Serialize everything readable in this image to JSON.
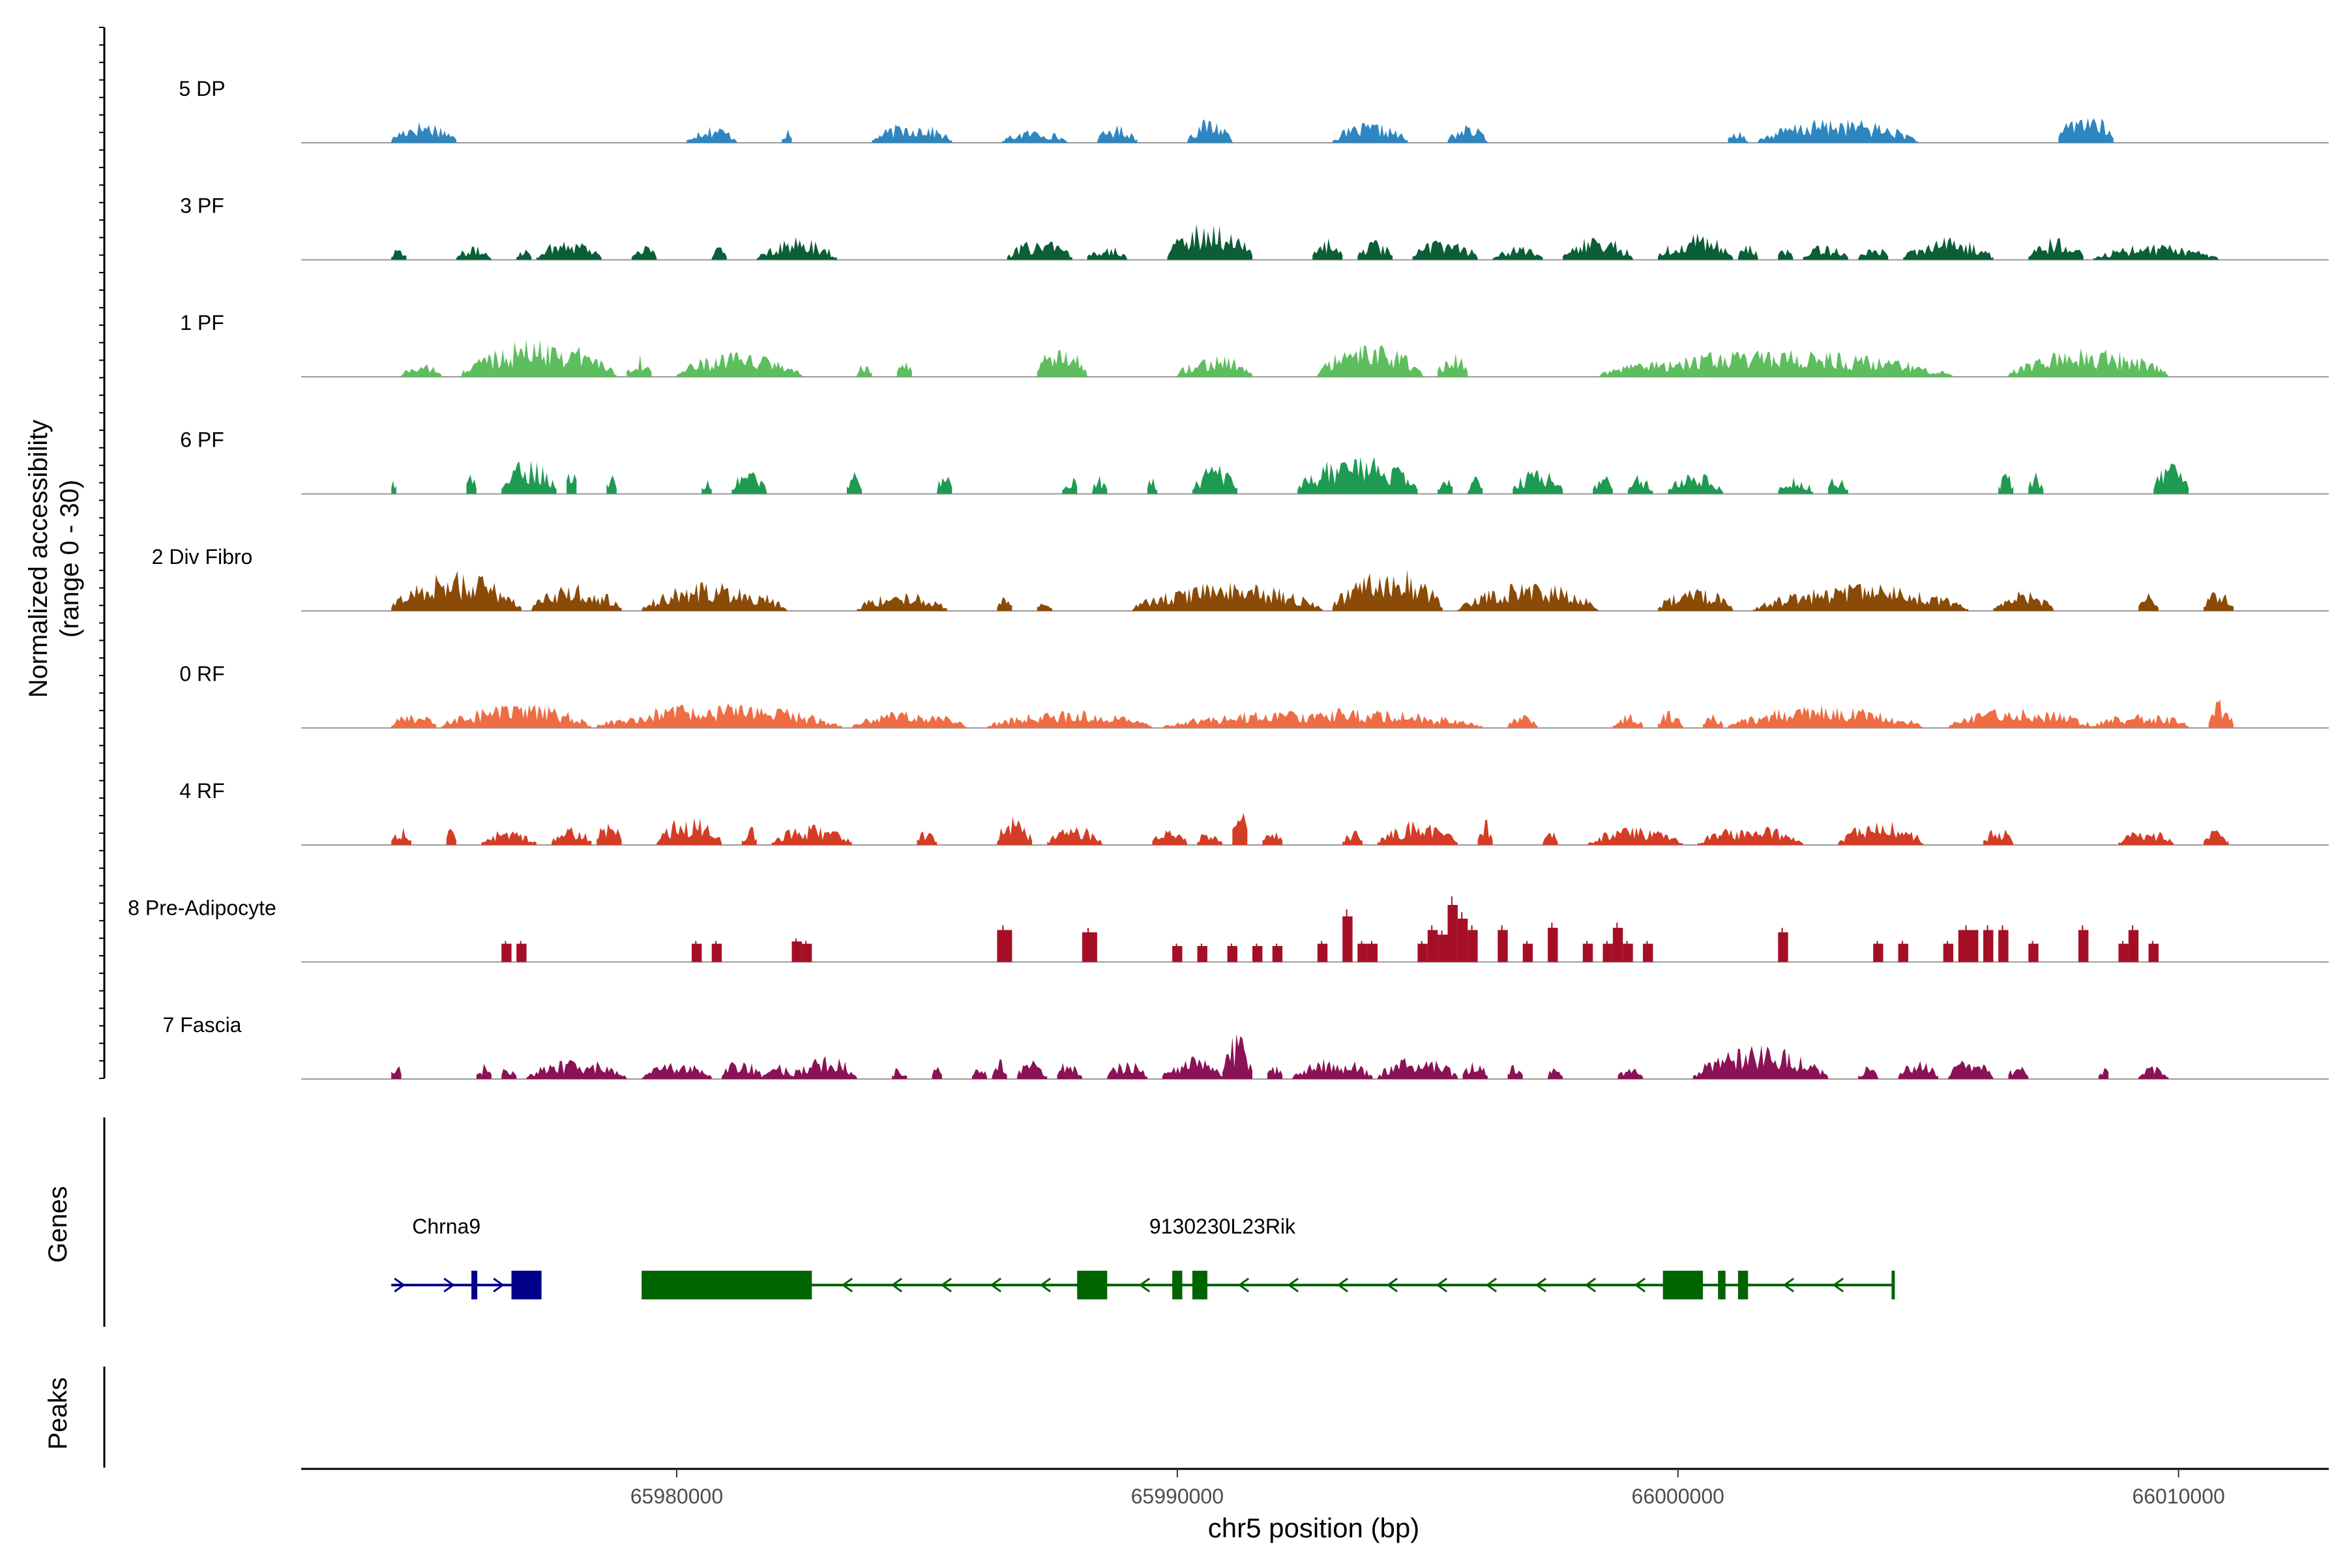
{
  "chart_data": {
    "type": "area",
    "title": "",
    "xlabel": "chr5 position (bp)",
    "ylabel_line1": "Normalized accessibility",
    "ylabel_line2": "(range 0 - 30)",
    "y_range": [
      0,
      30
    ],
    "xlim": [
      65972500,
      66013000
    ],
    "x_ticks": [
      65980000,
      65990000,
      66000000,
      66010000
    ],
    "x_tick_labels": [
      "65980000",
      "65990000",
      "66000000",
      "66010000"
    ],
    "genes_panel_label": "Genes",
    "peaks_panel_label": "Peaks",
    "tracks": [
      {
        "name": "5 DP",
        "color": "#2E86C1",
        "style": "area",
        "regions": [
          [
            65974300,
            65975600,
            0.5
          ],
          [
            65980200,
            65981200,
            0.4
          ],
          [
            65982100,
            65982300,
            0.3
          ],
          [
            65983900,
            65985500,
            0.45
          ],
          [
            65986500,
            65987800,
            0.3
          ],
          [
            65988400,
            65989200,
            0.4
          ],
          [
            65990200,
            65991100,
            0.55
          ],
          [
            65993100,
            65994600,
            0.45
          ],
          [
            65995400,
            65996200,
            0.4
          ],
          [
            66001000,
            66001400,
            0.3
          ],
          [
            66001600,
            66004800,
            0.55
          ],
          [
            66007600,
            66008700,
            0.7
          ]
        ]
      },
      {
        "name": "3 PF",
        "color": "#0B5E36",
        "style": "area",
        "regions": [
          [
            65974300,
            65974600,
            0.35
          ],
          [
            65975600,
            65976300,
            0.3
          ],
          [
            65976800,
            65977100,
            0.3
          ],
          [
            65977200,
            65978500,
            0.5
          ],
          [
            65979100,
            65979600,
            0.35
          ],
          [
            65980700,
            65981000,
            0.3
          ],
          [
            65981600,
            65983200,
            0.5
          ],
          [
            65986600,
            65987900,
            0.45
          ],
          [
            65988200,
            65989000,
            0.35
          ],
          [
            65989800,
            65991500,
            0.85
          ],
          [
            65992700,
            65993300,
            0.5
          ],
          [
            65993600,
            65994300,
            0.45
          ],
          [
            65994700,
            65996000,
            0.5
          ],
          [
            65996300,
            65997300,
            0.3
          ],
          [
            65997700,
            65999100,
            0.55
          ],
          [
            65999600,
            66001100,
            0.6
          ],
          [
            66001200,
            66001600,
            0.35
          ],
          [
            66002000,
            66002300,
            0.3
          ],
          [
            66002500,
            66003400,
            0.35
          ],
          [
            66003600,
            66004200,
            0.35
          ],
          [
            66004500,
            66006300,
            0.5
          ],
          [
            66007000,
            66008100,
            0.5
          ],
          [
            66008300,
            66010800,
            0.35
          ]
        ]
      },
      {
        "name": "1 PF",
        "color": "#5DBE5F",
        "style": "area",
        "regions": [
          [
            65974500,
            65975300,
            0.3
          ],
          [
            65975700,
            65978800,
            0.85
          ],
          [
            65979000,
            65979500,
            0.5
          ],
          [
            65980000,
            65982500,
            0.55
          ],
          [
            65983600,
            65983900,
            0.3
          ],
          [
            65984400,
            65984700,
            0.35
          ],
          [
            65987200,
            65988200,
            0.75
          ],
          [
            65990000,
            65991500,
            0.5
          ],
          [
            65992800,
            65994900,
            0.75
          ],
          [
            65995200,
            65995800,
            0.55
          ],
          [
            65998400,
            66005500,
            0.6
          ],
          [
            66006600,
            66009800,
            0.65
          ]
        ]
      },
      {
        "name": "6 PF",
        "color": "#1E9A52",
        "style": "area",
        "regions": [
          [
            65974300,
            65974400,
            0.4
          ],
          [
            65975800,
            65976000,
            0.5
          ],
          [
            65976500,
            65977600,
            0.8
          ],
          [
            65977800,
            65978000,
            0.7
          ],
          [
            65978600,
            65978800,
            0.5
          ],
          [
            65980500,
            65980700,
            0.4
          ],
          [
            65981100,
            65981800,
            0.55
          ],
          [
            65983400,
            65983700,
            0.6
          ],
          [
            65985200,
            65985500,
            0.45
          ],
          [
            65987700,
            65988000,
            0.45
          ],
          [
            65988300,
            65988600,
            0.4
          ],
          [
            65989400,
            65989600,
            0.4
          ],
          [
            65990300,
            65991200,
            0.65
          ],
          [
            65992400,
            65994800,
            0.9
          ],
          [
            65995200,
            65995500,
            0.5
          ],
          [
            65995800,
            65996100,
            0.45
          ],
          [
            65996700,
            65997700,
            0.6
          ],
          [
            65998300,
            65998700,
            0.45
          ],
          [
            65999000,
            65999500,
            0.45
          ],
          [
            65999800,
            66000900,
            0.55
          ],
          [
            66002000,
            66002700,
            0.4
          ],
          [
            66003000,
            66003400,
            0.45
          ],
          [
            66006400,
            66006700,
            0.5
          ],
          [
            66007000,
            66007300,
            0.5
          ],
          [
            66009500,
            66010200,
            0.7
          ]
        ]
      },
      {
        "name": "2 Div Fibro",
        "color": "#8B4B08",
        "style": "area",
        "regions": [
          [
            65974300,
            65976900,
            0.9
          ],
          [
            65977100,
            65978900,
            0.6
          ],
          [
            65979300,
            65982200,
            0.65
          ],
          [
            65983600,
            65985400,
            0.45
          ],
          [
            65986400,
            65986700,
            0.35
          ],
          [
            65987200,
            65987500,
            0.35
          ],
          [
            65989100,
            65992900,
            0.65
          ],
          [
            65993100,
            65995300,
            1.0
          ],
          [
            65995600,
            65998400,
            0.65
          ],
          [
            65999600,
            66001100,
            0.55
          ],
          [
            66001500,
            66005800,
            0.6
          ],
          [
            66006300,
            66007500,
            0.45
          ],
          [
            66009200,
            66009600,
            0.4
          ],
          [
            66010500,
            66011100,
            0.45
          ]
        ]
      },
      {
        "name": "0 RF",
        "color": "#EE6D45",
        "style": "area",
        "regions": [
          [
            65974300,
            65975200,
            0.35
          ],
          [
            65975300,
            65978300,
            0.55
          ],
          [
            65978400,
            65983300,
            0.55
          ],
          [
            65983500,
            65985800,
            0.4
          ],
          [
            65986200,
            65989500,
            0.4
          ],
          [
            65989700,
            65996100,
            0.45
          ],
          [
            65996600,
            65997200,
            0.3
          ],
          [
            65998700,
            65999300,
            0.35
          ],
          [
            65999600,
            66000100,
            0.4
          ],
          [
            66000500,
            66000900,
            0.35
          ],
          [
            66001000,
            66004900,
            0.5
          ],
          [
            66005400,
            66008300,
            0.45
          ],
          [
            66008300,
            66010200,
            0.35
          ],
          [
            66010600,
            66011100,
            0.65
          ]
        ]
      },
      {
        "name": "4 RF",
        "color": "#D43D25",
        "style": "area",
        "regions": [
          [
            65974300,
            65974700,
            0.4
          ],
          [
            65975400,
            65975600,
            0.45
          ],
          [
            65976100,
            65977200,
            0.35
          ],
          [
            65977500,
            65978300,
            0.4
          ],
          [
            65978400,
            65978900,
            0.55
          ],
          [
            65979600,
            65980900,
            0.65
          ],
          [
            65981300,
            65981600,
            0.45
          ],
          [
            65981900,
            65983500,
            0.45
          ],
          [
            65984800,
            65985200,
            0.4
          ],
          [
            65986400,
            65987100,
            0.65
          ],
          [
            65987400,
            65988500,
            0.45
          ],
          [
            65989500,
            65990200,
            0.35
          ],
          [
            65990400,
            65990900,
            0.35
          ],
          [
            65991100,
            65991400,
            1.0
          ],
          [
            65991700,
            65992100,
            0.35
          ],
          [
            65993300,
            65993700,
            0.35
          ],
          [
            65994000,
            65995600,
            0.55
          ],
          [
            65996000,
            65996300,
            0.6
          ],
          [
            65997300,
            65997600,
            0.35
          ],
          [
            65998200,
            66000100,
            0.4
          ],
          [
            66000400,
            66002500,
            0.45
          ],
          [
            66003200,
            66004900,
            0.55
          ],
          [
            66006100,
            66006700,
            0.4
          ],
          [
            66008800,
            66009900,
            0.35
          ],
          [
            66010500,
            66011000,
            0.35
          ]
        ]
      },
      {
        "name": "8 Pre-Adipocyte",
        "color": "#A50F25",
        "style": "bars",
        "regions": [
          [
            65976500,
            65976700,
            0.4
          ],
          [
            65976800,
            65977000,
            0.4
          ],
          [
            65980300,
            65980500,
            0.4
          ],
          [
            65980700,
            65980900,
            0.4
          ],
          [
            65982300,
            65982500,
            0.45
          ],
          [
            65982500,
            65982700,
            0.4
          ],
          [
            65986400,
            65986700,
            0.7
          ],
          [
            65988100,
            65988400,
            0.65
          ],
          [
            65989900,
            65990100,
            0.35
          ],
          [
            65990400,
            65990600,
            0.35
          ],
          [
            65991000,
            65991200,
            0.35
          ],
          [
            65991500,
            65991700,
            0.35
          ],
          [
            65991900,
            65992100,
            0.35
          ],
          [
            65992800,
            65993000,
            0.4
          ],
          [
            65993300,
            65993500,
            1.0
          ],
          [
            65993600,
            65993800,
            0.4
          ],
          [
            65993800,
            65994000,
            0.4
          ],
          [
            65994800,
            65995000,
            0.4
          ],
          [
            65995000,
            65995200,
            0.7
          ],
          [
            65995200,
            65995400,
            0.6
          ],
          [
            65995400,
            65995600,
            1.25
          ],
          [
            65995600,
            65995800,
            0.95
          ],
          [
            65995800,
            65996000,
            0.7
          ],
          [
            65996400,
            65996600,
            0.7
          ],
          [
            65996900,
            65997100,
            0.4
          ],
          [
            65997400,
            65997600,
            0.75
          ],
          [
            65998100,
            65998300,
            0.4
          ],
          [
            65998500,
            65998700,
            0.4
          ],
          [
            65998700,
            65998900,
            0.75
          ],
          [
            65998900,
            65999100,
            0.4
          ],
          [
            65999300,
            65999500,
            0.4
          ],
          [
            66002000,
            66002200,
            0.65
          ],
          [
            66003900,
            66004100,
            0.4
          ],
          [
            66004400,
            66004600,
            0.4
          ],
          [
            66005300,
            66005500,
            0.4
          ],
          [
            66005600,
            66006000,
            0.7
          ],
          [
            66006100,
            66006300,
            0.7
          ],
          [
            66006400,
            66006600,
            0.7
          ],
          [
            66007000,
            66007200,
            0.4
          ],
          [
            66008000,
            66008200,
            0.7
          ],
          [
            66008800,
            66009000,
            0.4
          ],
          [
            66009000,
            66009200,
            0.7
          ],
          [
            66009400,
            66009600,
            0.4
          ]
        ]
      },
      {
        "name": "7 Fascia",
        "color": "#8B1257",
        "style": "area",
        "regions": [
          [
            65974300,
            65974500,
            0.45
          ],
          [
            65976000,
            65976300,
            0.35
          ],
          [
            65976500,
            65976800,
            0.35
          ],
          [
            65977000,
            65979000,
            0.45
          ],
          [
            65979300,
            65980700,
            0.4
          ],
          [
            65980900,
            65981700,
            0.45
          ],
          [
            65981700,
            65982300,
            0.35
          ],
          [
            65982300,
            65983600,
            0.55
          ],
          [
            65984300,
            65984600,
            0.3
          ],
          [
            65985100,
            65985300,
            0.3
          ],
          [
            65985900,
            65986200,
            0.3
          ],
          [
            65986300,
            65986600,
            0.55
          ],
          [
            65986800,
            65987400,
            0.45
          ],
          [
            65987600,
            65988100,
            0.45
          ],
          [
            65988600,
            65989400,
            0.4
          ],
          [
            65989700,
            65990900,
            0.5
          ],
          [
            65990900,
            65991500,
            1.0
          ],
          [
            65991800,
            65992100,
            0.35
          ],
          [
            65992300,
            65993900,
            0.5
          ],
          [
            65994000,
            65995600,
            0.5
          ],
          [
            65995700,
            65996200,
            0.4
          ],
          [
            65996600,
            65996900,
            0.35
          ],
          [
            65997400,
            65997700,
            0.3
          ],
          [
            65998800,
            65999300,
            0.3
          ],
          [
            66000300,
            66003000,
            0.75
          ],
          [
            66003600,
            66004000,
            0.3
          ],
          [
            66004400,
            66005200,
            0.4
          ],
          [
            66005400,
            66006300,
            0.45
          ],
          [
            66006600,
            66007000,
            0.35
          ],
          [
            66008400,
            66008600,
            0.35
          ],
          [
            66009200,
            66009800,
            0.3
          ]
        ]
      }
    ],
    "genes": [
      {
        "name": "Chrna9",
        "strand": "+",
        "color": "#00008B",
        "start": 65974300,
        "end": 65977300,
        "exons": [
          [
            65975900,
            65976000
          ],
          [
            65976700,
            65977300
          ]
        ],
        "label_x": 65975400
      },
      {
        "name": "9130230L23Rik",
        "strand": "-",
        "color": "#006400",
        "start": 65979300,
        "end": 66004300,
        "exons": [
          [
            65979300,
            65982700
          ],
          [
            65988000,
            65988600
          ],
          [
            65989900,
            65990100
          ],
          [
            65990300,
            65990600
          ],
          [
            65999700,
            66000500
          ],
          [
            66000800,
            66000950
          ],
          [
            66001200,
            66001400
          ]
        ],
        "label_x": 65990900
      }
    ],
    "peaks": []
  }
}
